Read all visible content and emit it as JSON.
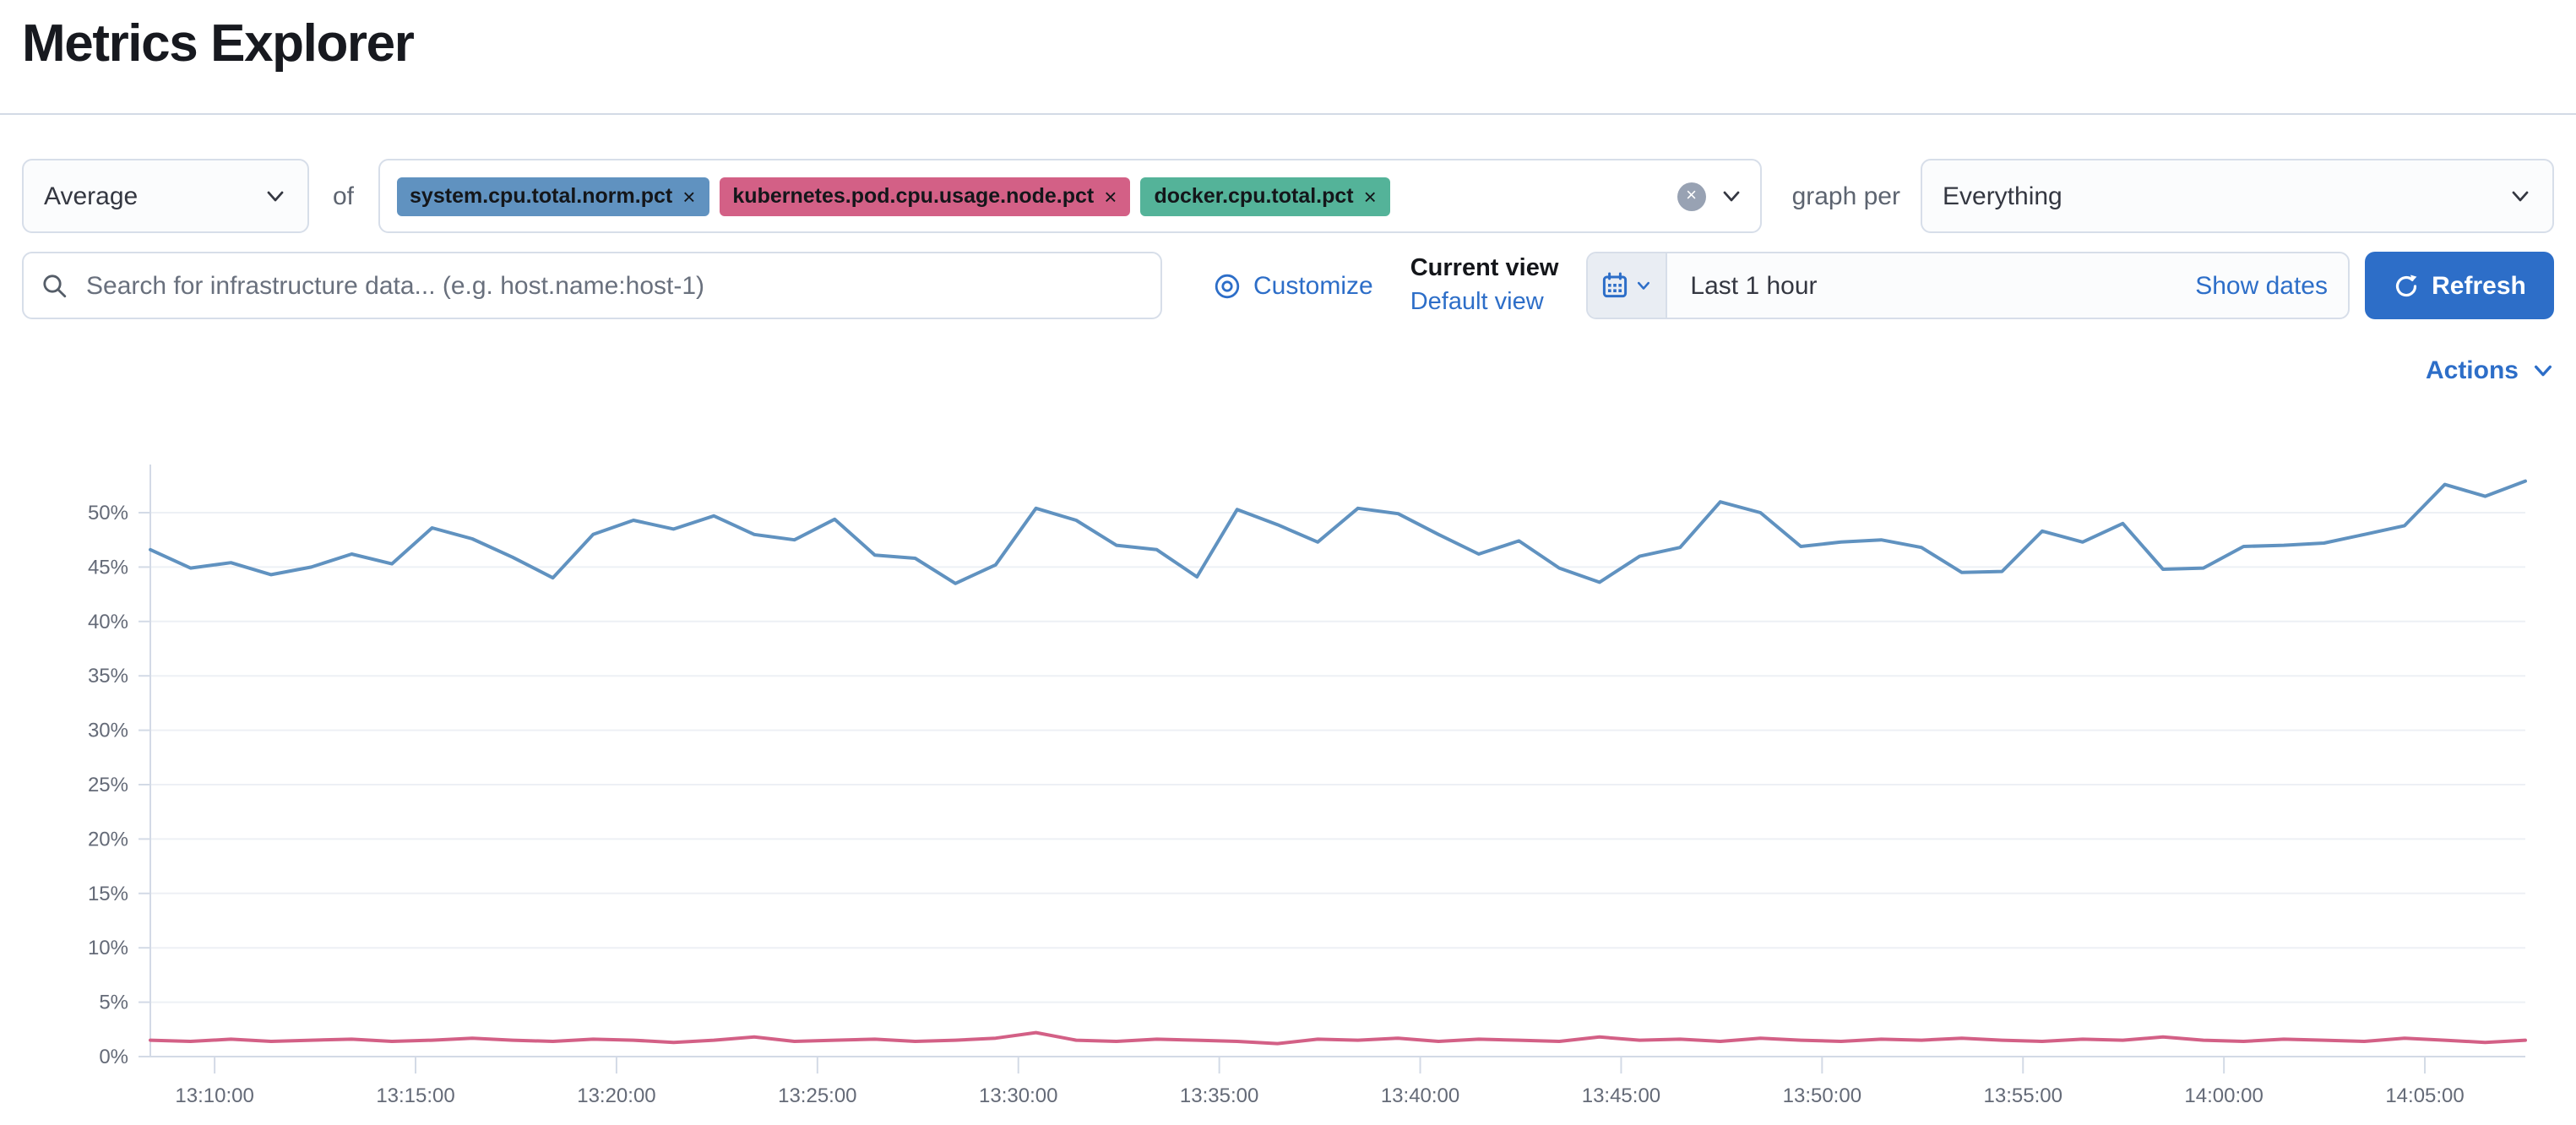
{
  "page": {
    "title": "Metrics Explorer"
  },
  "toolbar": {
    "aggregation": {
      "value": "Average"
    },
    "of_label": "of",
    "metrics": {
      "tags": [
        {
          "label": "system.cpu.total.norm.pct",
          "color": "#6092C0"
        },
        {
          "label": "kubernetes.pod.cpu.usage.node.pct",
          "color": "#D36086"
        },
        {
          "label": "docker.cpu.total.pct",
          "color": "#54B399"
        }
      ],
      "remove_icon": "×",
      "clear_icon": "×"
    },
    "graph_per_label": "graph per",
    "graph_per": {
      "value": "Everything"
    }
  },
  "searchbar": {
    "placeholder": "Search for infrastructure data... (e.g. host.name:host-1)",
    "customize_label": "Customize",
    "current_view_label": "Current view",
    "default_view_label": "Default view",
    "time_range": "Last 1 hour",
    "show_dates_label": "Show dates",
    "refresh_label": "Refresh"
  },
  "chart_header": {
    "actions_label": "Actions"
  },
  "colors": {
    "primary_blue": "#2d6ec8",
    "border": "#d7dee9",
    "gridline": "#edf0f5",
    "axis": "#d3dae6",
    "tick_text": "#646a77"
  },
  "chart_data": {
    "type": "line",
    "title": "",
    "xlabel": "",
    "ylabel": "",
    "y_unit": "%",
    "ylim": [
      0,
      55
    ],
    "grid": "horizontal",
    "legend": "none",
    "yticks": [
      0,
      5,
      10,
      15,
      20,
      25,
      30,
      35,
      40,
      45,
      50
    ],
    "ytick_labels": [
      "0%",
      "5%",
      "10%",
      "15%",
      "20%",
      "25%",
      "30%",
      "35%",
      "40%",
      "45%",
      "50%"
    ],
    "x_start_minute": 8.4,
    "x_end_minute": 67.5,
    "xtick_minutes": [
      10,
      15,
      20,
      25,
      30,
      35,
      40,
      45,
      50,
      55,
      60,
      65
    ],
    "xtick_labels": [
      "13:10:00",
      "13:15:00",
      "13:20:00",
      "13:25:00",
      "13:30:00",
      "13:35:00",
      "13:40:00",
      "13:45:00",
      "13:50:00",
      "13:55:00",
      "14:00:00",
      "14:05:00"
    ],
    "series": [
      {
        "name": "system.cpu.total.norm.pct (Average)",
        "color": "#6092C0",
        "values": [
          46.6,
          44.9,
          45.4,
          44.3,
          45.0,
          46.2,
          45.3,
          48.6,
          47.6,
          45.9,
          44.0,
          48.0,
          49.3,
          48.5,
          49.7,
          48.0,
          47.5,
          49.4,
          46.1,
          45.8,
          43.5,
          45.2,
          50.4,
          49.3,
          47.0,
          46.6,
          44.1,
          50.3,
          48.9,
          47.3,
          50.4,
          49.9,
          48.0,
          46.2,
          47.4,
          44.9,
          43.6,
          46.0,
          46.8,
          51.0,
          50.0,
          46.9,
          47.3,
          47.5,
          46.8,
          44.5,
          44.6,
          48.3,
          47.3,
          49.0,
          44.8,
          44.9,
          46.9,
          47.0,
          47.2,
          48.0,
          48.8,
          52.6,
          51.5,
          52.9
        ]
      },
      {
        "name": "kubernetes.pod.cpu.usage.node.pct (Average)",
        "color": "#D36086",
        "values": [
          1.5,
          1.4,
          1.6,
          1.4,
          1.5,
          1.6,
          1.4,
          1.5,
          1.7,
          1.5,
          1.4,
          1.6,
          1.5,
          1.3,
          1.5,
          1.8,
          1.4,
          1.5,
          1.6,
          1.4,
          1.5,
          1.7,
          2.2,
          1.5,
          1.4,
          1.6,
          1.5,
          1.4,
          1.2,
          1.6,
          1.5,
          1.7,
          1.4,
          1.6,
          1.5,
          1.4,
          1.8,
          1.5,
          1.6,
          1.4,
          1.7,
          1.5,
          1.4,
          1.6,
          1.5,
          1.7,
          1.5,
          1.4,
          1.6,
          1.5,
          1.8,
          1.5,
          1.4,
          1.6,
          1.5,
          1.4,
          1.7,
          1.5,
          1.3,
          1.5
        ]
      }
    ]
  }
}
